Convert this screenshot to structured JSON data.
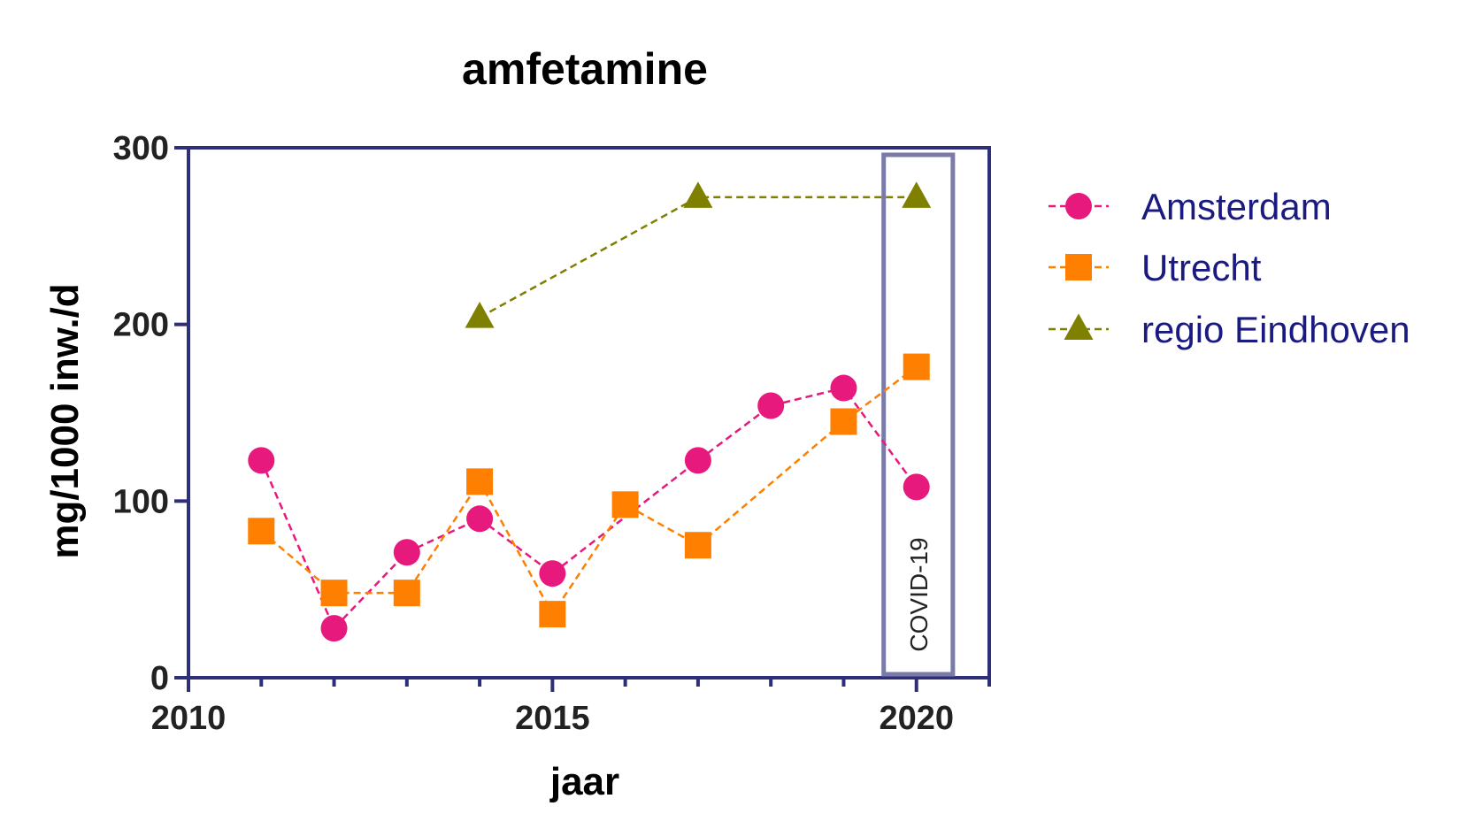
{
  "chart_data": {
    "type": "line",
    "title": "amfetamine",
    "xlabel": "jaar",
    "ylabel": "mg/1000 inw./d",
    "xlim": [
      2010,
      2021
    ],
    "ylim": [
      0,
      300
    ],
    "x_ticks": [
      2010,
      2015,
      2020
    ],
    "x_minor_ticks": [
      2011,
      2012,
      2013,
      2014,
      2016,
      2017,
      2018,
      2019,
      2021
    ],
    "y_ticks": [
      0,
      100,
      200,
      300
    ],
    "legend_position": "right",
    "grid": false,
    "series": [
      {
        "name": "Amsterdam",
        "color": "#e8197d",
        "marker": "circle",
        "line_style": "dashed",
        "x": [
          2011,
          2012,
          2013,
          2014,
          2015,
          2017,
          2018,
          2019,
          2020
        ],
        "y": [
          123,
          28,
          71,
          90,
          59,
          123,
          154,
          164,
          108
        ]
      },
      {
        "name": "Utrecht",
        "color": "#ff8000",
        "marker": "square",
        "line_style": "dashed",
        "x": [
          2011,
          2012,
          2013,
          2014,
          2015,
          2016,
          2017,
          2019,
          2020
        ],
        "y": [
          83,
          48,
          48,
          111,
          36,
          98,
          75,
          145,
          176
        ]
      },
      {
        "name": "regio Eindhoven",
        "color": "#808000",
        "marker": "triangle",
        "line_style": "dashed",
        "x": [
          2014,
          2017,
          2020
        ],
        "y": [
          204,
          272,
          272
        ]
      }
    ],
    "annotations": [
      {
        "text": "COVID-19",
        "x_from": 2019.55,
        "x_to": 2020.5,
        "y_from": 2,
        "y_to": 296,
        "box_color": "#7b7ba8"
      }
    ]
  },
  "colors": {
    "axis": "#2e2e7a"
  }
}
